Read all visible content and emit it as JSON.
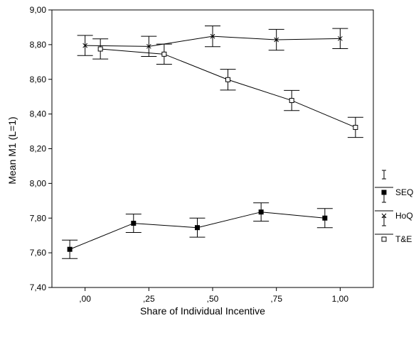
{
  "chart_data": {
    "type": "line",
    "xlabel": "Share of Individual Incentive",
    "ylabel": "Mean M1 (L=1)",
    "x_ticks": [
      {
        "value": 0.0,
        "label": ",00"
      },
      {
        "value": 0.25,
        "label": ",25"
      },
      {
        "value": 0.5,
        "label": ",50"
      },
      {
        "value": 0.75,
        "label": ",75"
      },
      {
        "value": 1.0,
        "label": "1,00"
      }
    ],
    "y_ticks": [
      {
        "value": 7.4,
        "label": "7,40"
      },
      {
        "value": 7.6,
        "label": "7,60"
      },
      {
        "value": 7.8,
        "label": "7,80"
      },
      {
        "value": 8.0,
        "label": "8,00"
      },
      {
        "value": 8.2,
        "label": "8,20"
      },
      {
        "value": 8.4,
        "label": "8,40"
      },
      {
        "value": 8.6,
        "label": "8,60"
      },
      {
        "value": 8.8,
        "label": "8,80"
      },
      {
        "value": 9.0,
        "label": "9,00"
      }
    ],
    "xlim": [
      -0.13,
      1.13
    ],
    "ylim": [
      7.4,
      9.0
    ],
    "legend_position": "right",
    "series": [
      {
        "name": "SEQ",
        "marker": "filled-square",
        "x": [
          -0.06,
          0.19,
          0.44,
          0.69,
          0.94
        ],
        "y": [
          7.62,
          7.77,
          7.745,
          7.835,
          7.8
        ],
        "err": [
          0.053,
          0.053,
          0.055,
          0.053,
          0.055
        ]
      },
      {
        "name": "HoQ",
        "marker": "x",
        "x": [
          0.0,
          0.25,
          0.5,
          0.75,
          1.0
        ],
        "y": [
          8.795,
          8.79,
          8.848,
          8.828,
          8.835
        ],
        "err": [
          0.058,
          0.058,
          0.06,
          0.06,
          0.058
        ]
      },
      {
        "name": "T&E",
        "marker": "open-square",
        "x": [
          0.06,
          0.31,
          0.56,
          0.81,
          1.06
        ],
        "y": [
          8.775,
          8.745,
          8.598,
          8.478,
          8.323
        ],
        "err": [
          0.058,
          0.058,
          0.06,
          0.058,
          0.058
        ]
      }
    ]
  }
}
